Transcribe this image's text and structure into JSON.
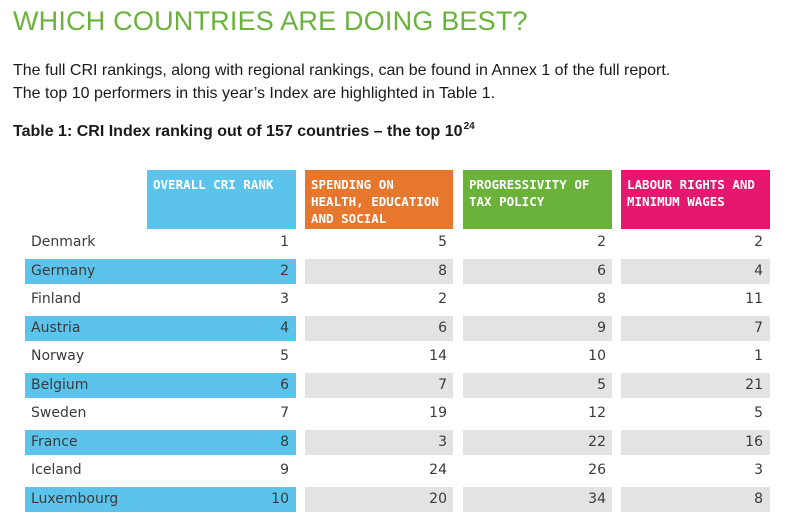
{
  "headline": "WHICH COUNTRIES ARE DOING BEST?",
  "intro": {
    "line1": "The full CRI rankings, along with regional rankings, can be found in Annex 1 of the full report.",
    "line2": "The top 10 performers in this year’s Index are highlighted in Table 1."
  },
  "table": {
    "caption": "Table 1: CRI Index ranking out of 157 countries – the top 10",
    "caption_sup": "24",
    "headers": {
      "rank": "OVERALL CRI RANK",
      "spending": "SPENDING ON HEALTH, EDUCATION AND SOCIAL PROTECTION",
      "tax": "PROGRESSIVITY OF TAX POLICY",
      "labour": "LABOUR RIGHTS AND MINIMUM WAGES"
    },
    "header_colors": {
      "rank": "#5cc4ec",
      "spending": "#e8772e",
      "tax": "#6ab23a",
      "labour": "#e5176e"
    },
    "rows": [
      {
        "country": "Denmark",
        "rank": "1",
        "spending": "5",
        "tax": "2",
        "labour": "2"
      },
      {
        "country": "Germany",
        "rank": "2",
        "spending": "8",
        "tax": "6",
        "labour": "4"
      },
      {
        "country": "Finland",
        "rank": "3",
        "spending": "2",
        "tax": "8",
        "labour": "11"
      },
      {
        "country": "Austria",
        "rank": "4",
        "spending": "6",
        "tax": "9",
        "labour": "7"
      },
      {
        "country": "Norway",
        "rank": "5",
        "spending": "14",
        "tax": "10",
        "labour": "1"
      },
      {
        "country": "Belgium",
        "rank": "6",
        "spending": "7",
        "tax": "5",
        "labour": "21"
      },
      {
        "country": "Sweden",
        "rank": "7",
        "spending": "19",
        "tax": "12",
        "labour": "5"
      },
      {
        "country": "France",
        "rank": "8",
        "spending": "3",
        "tax": "22",
        "labour": "16"
      },
      {
        "country": "Iceland",
        "rank": "9",
        "spending": "24",
        "tax": "26",
        "labour": "3"
      },
      {
        "country": "Luxembourg",
        "rank": "10",
        "spending": "20",
        "tax": "34",
        "labour": "8"
      }
    ]
  }
}
